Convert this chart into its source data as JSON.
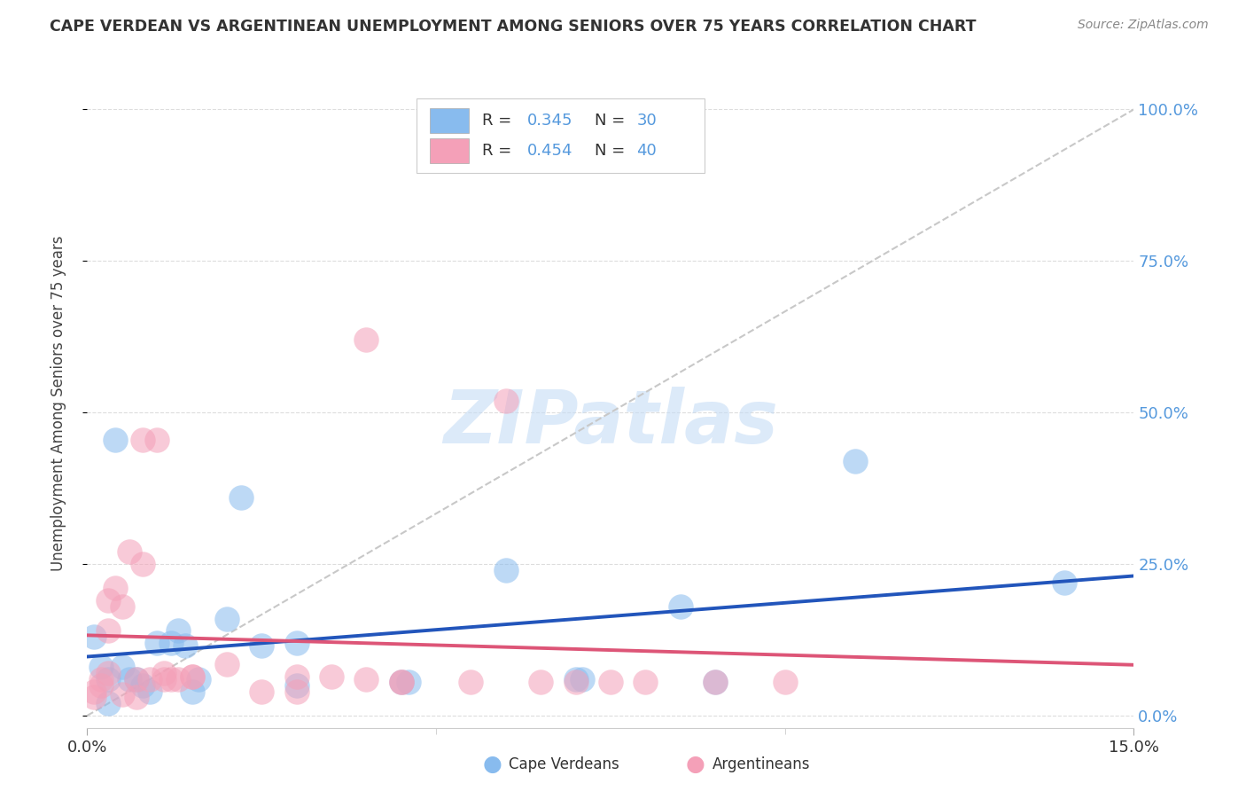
{
  "title": "CAPE VERDEAN VS ARGENTINEAN UNEMPLOYMENT AMONG SENIORS OVER 75 YEARS CORRELATION CHART",
  "source": "Source: ZipAtlas.com",
  "ylabel": "Unemployment Among Seniors over 75 years",
  "xlim": [
    0,
    0.15
  ],
  "ylim": [
    -0.02,
    1.05
  ],
  "blue_color": "#88BBEE",
  "pink_color": "#F4A0B8",
  "trendline_blue": "#2255BB",
  "trendline_pink": "#DD5577",
  "trendline_dashed_color": "#C8C8C8",
  "right_ytick_color": "#5599DD",
  "grid_color": "#DDDDDD",
  "title_color": "#333333",
  "source_color": "#888888",
  "label_color": "#444444",
  "watermark": "ZIPatlas",
  "background_color": "#FFFFFF",
  "blue_scatter_x": [
    0.001,
    0.002,
    0.003,
    0.003,
    0.004,
    0.005,
    0.006,
    0.007,
    0.008,
    0.009,
    0.01,
    0.012,
    0.013,
    0.014,
    0.015,
    0.016,
    0.02,
    0.022,
    0.025,
    0.03,
    0.03,
    0.045,
    0.046,
    0.06,
    0.07,
    0.071,
    0.085,
    0.09,
    0.11,
    0.14
  ],
  "blue_scatter_y": [
    0.13,
    0.08,
    0.06,
    0.02,
    0.455,
    0.08,
    0.06,
    0.06,
    0.05,
    0.04,
    0.12,
    0.12,
    0.14,
    0.115,
    0.04,
    0.06,
    0.16,
    0.36,
    0.115,
    0.12,
    0.05,
    0.055,
    0.055,
    0.24,
    0.06,
    0.06,
    0.18,
    0.055,
    0.42,
    0.22
  ],
  "pink_scatter_x": [
    0.001,
    0.001,
    0.002,
    0.002,
    0.003,
    0.003,
    0.003,
    0.004,
    0.005,
    0.005,
    0.006,
    0.007,
    0.007,
    0.008,
    0.008,
    0.009,
    0.01,
    0.011,
    0.011,
    0.012,
    0.013,
    0.015,
    0.015,
    0.02,
    0.025,
    0.03,
    0.03,
    0.035,
    0.04,
    0.04,
    0.045,
    0.045,
    0.055,
    0.06,
    0.065,
    0.07,
    0.075,
    0.08,
    0.09,
    0.1
  ],
  "pink_scatter_y": [
    0.03,
    0.04,
    0.05,
    0.06,
    0.07,
    0.19,
    0.14,
    0.21,
    0.18,
    0.035,
    0.27,
    0.03,
    0.06,
    0.25,
    0.455,
    0.06,
    0.455,
    0.06,
    0.07,
    0.06,
    0.06,
    0.065,
    0.065,
    0.085,
    0.04,
    0.04,
    0.065,
    0.065,
    0.62,
    0.06,
    0.055,
    0.055,
    0.055,
    0.52,
    0.055,
    0.055,
    0.055,
    0.055,
    0.055,
    0.055
  ]
}
